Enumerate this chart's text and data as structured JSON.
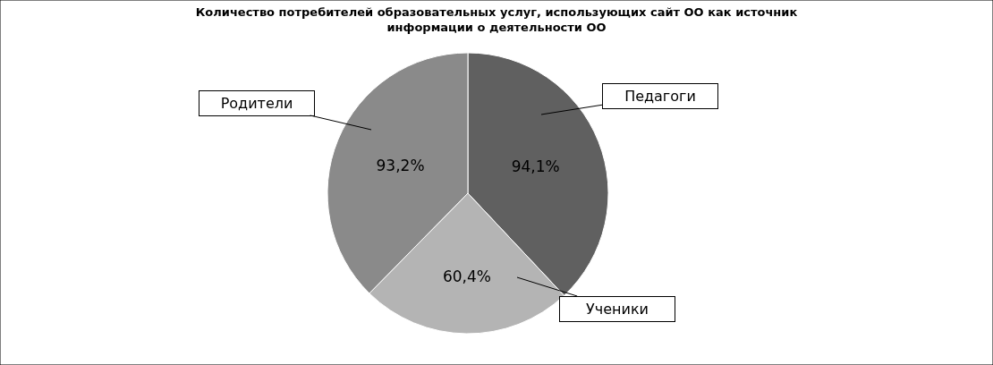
{
  "chart_data": {
    "type": "pie",
    "title": "Количество потребителей образовательных услуг, использующих сайт ОО как источник\nинформации о деятельности ОО",
    "categories": [
      "Педагоги",
      "Ученики",
      "Родители"
    ],
    "values": [
      94.1,
      60.4,
      93.2
    ],
    "value_labels": [
      "94,1%",
      "60,4%",
      "93,2%"
    ],
    "colors": [
      "#606060",
      "#b4b4b4",
      "#8a8a8a"
    ],
    "legend": false
  }
}
